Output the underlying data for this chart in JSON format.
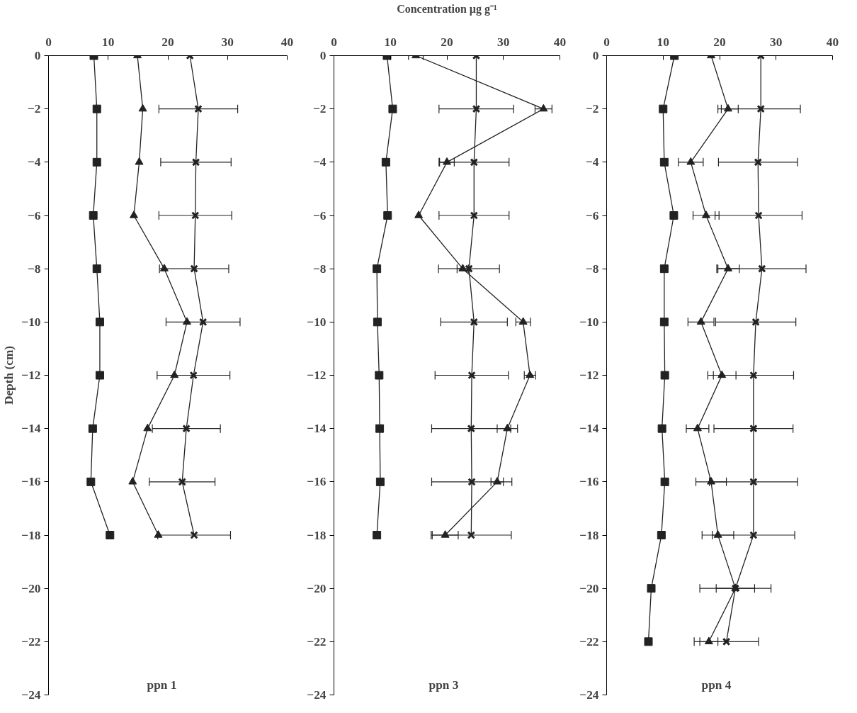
{
  "chart_data": [
    {
      "type": "line",
      "ylabel": "Depth (cm)",
      "annotations": [
        "ppn 1"
      ],
      "xlim": [
        0,
        40
      ],
      "xticks": [
        0,
        10,
        20,
        30,
        40
      ],
      "ylim": [
        -24,
        0
      ],
      "yticks": [
        0,
        -2,
        -4,
        -6,
        -8,
        -10,
        -12,
        -14,
        -16,
        -18,
        -20,
        -22,
        -24
      ],
      "grid": false,
      "line_style": "solid",
      "series": [
        {
          "color": "#222222",
          "marker": "square",
          "x": [
            7.6,
            8.1,
            8.1,
            7.5,
            8.1,
            8.6,
            8.6,
            7.4,
            7.1,
            10.3
          ],
          "values": [
            0,
            -2,
            -4,
            -6,
            -8,
            -10,
            -12,
            -14,
            -16,
            -18
          ]
        },
        {
          "color": "#222222",
          "marker": "triangle",
          "x": [
            14.9,
            15.8,
            15.2,
            14.3,
            19.4,
            23.2,
            21.1,
            16.6,
            14.1,
            18.4
          ],
          "values": [
            0,
            -2,
            -4,
            -6,
            -8,
            -10,
            -12,
            -14,
            -16,
            -18
          ]
        },
        {
          "color": "#222222",
          "marker": "cross",
          "x": [
            23.7,
            25.1,
            24.7,
            24.6,
            24.4,
            25.9,
            24.3,
            23.1,
            22.4,
            24.4
          ],
          "values": [
            0,
            -2,
            -4,
            -6,
            -8,
            -10,
            -12,
            -14,
            -16,
            -18
          ],
          "xerrors": [
            null,
            6.6,
            5.9,
            6.1,
            5.8,
            6.2,
            6.1,
            5.7,
            5.5,
            6.1
          ]
        }
      ]
    },
    {
      "type": "line",
      "xlabel": "Concentration µg g⁻¹",
      "annotations": [
        "ppn 3"
      ],
      "xlim": [
        0,
        40
      ],
      "xticks": [
        0,
        10,
        20,
        30,
        40
      ],
      "ylim": [
        -24,
        0
      ],
      "yticks": [
        0,
        -2,
        -4,
        -6,
        -8,
        -10,
        -12,
        -14,
        -16,
        -18,
        -20,
        -22,
        -24
      ],
      "grid": false,
      "line_style": "solid",
      "series": [
        {
          "color": "#222222",
          "marker": "square",
          "x": [
            9.4,
            10.4,
            9.2,
            9.5,
            7.6,
            7.7,
            8.0,
            8.1,
            8.2,
            7.6
          ],
          "values": [
            0,
            -2,
            -4,
            -6,
            -8,
            -10,
            -12,
            -14,
            -16,
            -18
          ]
        },
        {
          "color": "#222222",
          "marker": "triangle",
          "x": [
            14.5,
            37.1,
            20.0,
            15.0,
            22.8,
            33.5,
            34.7,
            30.7,
            28.9,
            19.7
          ],
          "values": [
            0,
            -2,
            -4,
            -6,
            -8,
            -10,
            -12,
            -14,
            -16,
            -18
          ],
          "xerrors": [
            1.3,
            1.5,
            1.3,
            null,
            1.0,
            1.3,
            1.0,
            1.8,
            1.1,
            2.3
          ]
        },
        {
          "color": "#222222",
          "marker": "cross",
          "x": [
            25.2,
            25.2,
            24.8,
            24.8,
            23.9,
            24.8,
            24.4,
            24.3,
            24.4,
            24.3
          ],
          "values": [
            0,
            -2,
            -4,
            -6,
            -8,
            -10,
            -12,
            -14,
            -16,
            -18
          ],
          "xerrors": [
            null,
            6.6,
            6.2,
            6.2,
            5.4,
            5.9,
            6.5,
            7.0,
            7.1,
            7.1
          ]
        }
      ]
    },
    {
      "type": "line",
      "annotations": [
        "ppn 4"
      ],
      "xlim": [
        0,
        40
      ],
      "xticks": [
        0,
        10,
        20,
        30,
        40
      ],
      "ylim": [
        -24,
        0
      ],
      "yticks": [
        0,
        -2,
        -4,
        -6,
        -8,
        -10,
        -12,
        -14,
        -16,
        -18,
        -20,
        -22,
        -24
      ],
      "grid": false,
      "line_style": "solid",
      "series": [
        {
          "color": "#222222",
          "marker": "square",
          "x": [
            12.0,
            10.0,
            10.2,
            11.9,
            10.2,
            10.2,
            10.3,
            9.8,
            10.3,
            9.7,
            7.9,
            7.4
          ],
          "values": [
            0,
            -2,
            -4,
            -6,
            -8,
            -10,
            -12,
            -14,
            -16,
            -18,
            -20,
            -22
          ]
        },
        {
          "color": "#222222",
          "marker": "triangle",
          "x": [
            18.5,
            21.5,
            14.9,
            17.6,
            21.5,
            16.7,
            20.4,
            16.1,
            18.5,
            19.7,
            22.8,
            18.1
          ],
          "values": [
            0,
            -2,
            -4,
            -6,
            -8,
            -10,
            -12,
            -14,
            -16,
            -18,
            -20,
            -22
          ],
          "xerrors": [
            null,
            1.8,
            2.2,
            2.3,
            2.0,
            2.3,
            2.5,
            2.0,
            2.7,
            2.8,
            3.4,
            1.6
          ]
        },
        {
          "color": "#222222",
          "marker": "cross",
          "x": [
            27.3,
            27.3,
            26.8,
            26.9,
            27.5,
            26.4,
            26.0,
            26.0,
            26.0,
            26.0,
            22.8,
            21.2
          ],
          "values": [
            0,
            -2,
            -4,
            -6,
            -8,
            -10,
            -12,
            -14,
            -16,
            -18,
            -20,
            -22
          ],
          "xerrors": [
            null,
            7.0,
            7.0,
            7.7,
            7.8,
            7.1,
            7.1,
            7.0,
            7.8,
            7.3,
            6.3,
            5.7
          ]
        }
      ]
    }
  ]
}
